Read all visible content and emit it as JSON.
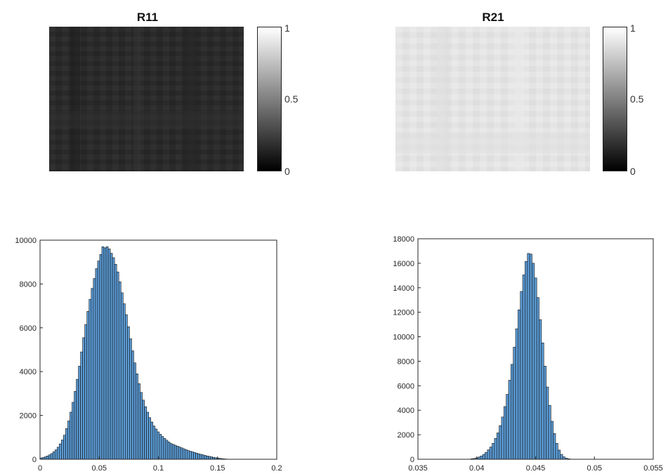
{
  "colors": {
    "r11_tone": "#2a2a2a",
    "r21_tone": "#e4e4e4",
    "bar_face": "#5b9bd5",
    "bar_edge": "#111111",
    "axis": "#262626"
  },
  "images": [
    {
      "title": "R11",
      "colormap": "gray",
      "colorbar_ticks": [
        "0",
        "0.5",
        "1"
      ]
    },
    {
      "title": "R21",
      "colormap": "gray",
      "colorbar_ticks": [
        "0",
        "0.5",
        "1"
      ]
    }
  ],
  "chart_data": [
    {
      "type": "bar",
      "xlim": [
        0,
        0.2
      ],
      "ylim": [
        0,
        10000
      ],
      "xticks": [
        "0",
        "0.05",
        "0.1",
        "0.15",
        "0.2"
      ],
      "yticks": [
        "0",
        "2000",
        "4000",
        "6000",
        "8000",
        "10000"
      ],
      "bin_start": 0.0,
      "bin_width": 0.0018,
      "values": [
        60,
        80,
        110,
        150,
        200,
        260,
        340,
        430,
        550,
        700,
        880,
        1100,
        1400,
        1750,
        2150,
        2600,
        3100,
        3650,
        4250,
        4900,
        5550,
        6150,
        6750,
        7300,
        7800,
        8250,
        8700,
        9050,
        9350,
        9700,
        9650,
        9700,
        9600,
        9400,
        9200,
        8900,
        8550,
        8100,
        7600,
        7100,
        6600,
        6050,
        5500,
        4950,
        4400,
        3900,
        3450,
        3050,
        2700,
        2400,
        2150,
        1900,
        1700,
        1520,
        1380,
        1250,
        1140,
        1040,
        950,
        870,
        790,
        720,
        680,
        640,
        600,
        560,
        520,
        480,
        440,
        400,
        370,
        340,
        310,
        280,
        250,
        225,
        200,
        175,
        150,
        130,
        110,
        90,
        70,
        55,
        40,
        28,
        18,
        10,
        5,
        2
      ],
      "title": "",
      "xlabel": "",
      "ylabel": "",
      "grid": false
    },
    {
      "type": "bar",
      "xlim": [
        0.035,
        0.055
      ],
      "ylim": [
        0,
        18000
      ],
      "xticks": [
        "0.035",
        "0.04",
        "0.045",
        "0.05",
        "0.055"
      ],
      "yticks": [
        "0",
        "2000",
        "4000",
        "6000",
        "8000",
        "10000",
        "12000",
        "14000",
        "16000",
        "18000"
      ],
      "bin_start": 0.0395,
      "bin_width": 0.0002,
      "values": [
        40,
        70,
        110,
        180,
        270,
        400,
        560,
        770,
        1000,
        1300,
        1700,
        2150,
        2750,
        3450,
        4300,
        5300,
        6450,
        7750,
        9150,
        10650,
        12200,
        13700,
        15050,
        16150,
        16800,
        16750,
        16000,
        14800,
        13200,
        11400,
        9500,
        7600,
        5900,
        4400,
        3100,
        2100,
        1300,
        750,
        400,
        200,
        90,
        40,
        15
      ],
      "title": "",
      "xlabel": "",
      "ylabel": "",
      "grid": false
    }
  ]
}
